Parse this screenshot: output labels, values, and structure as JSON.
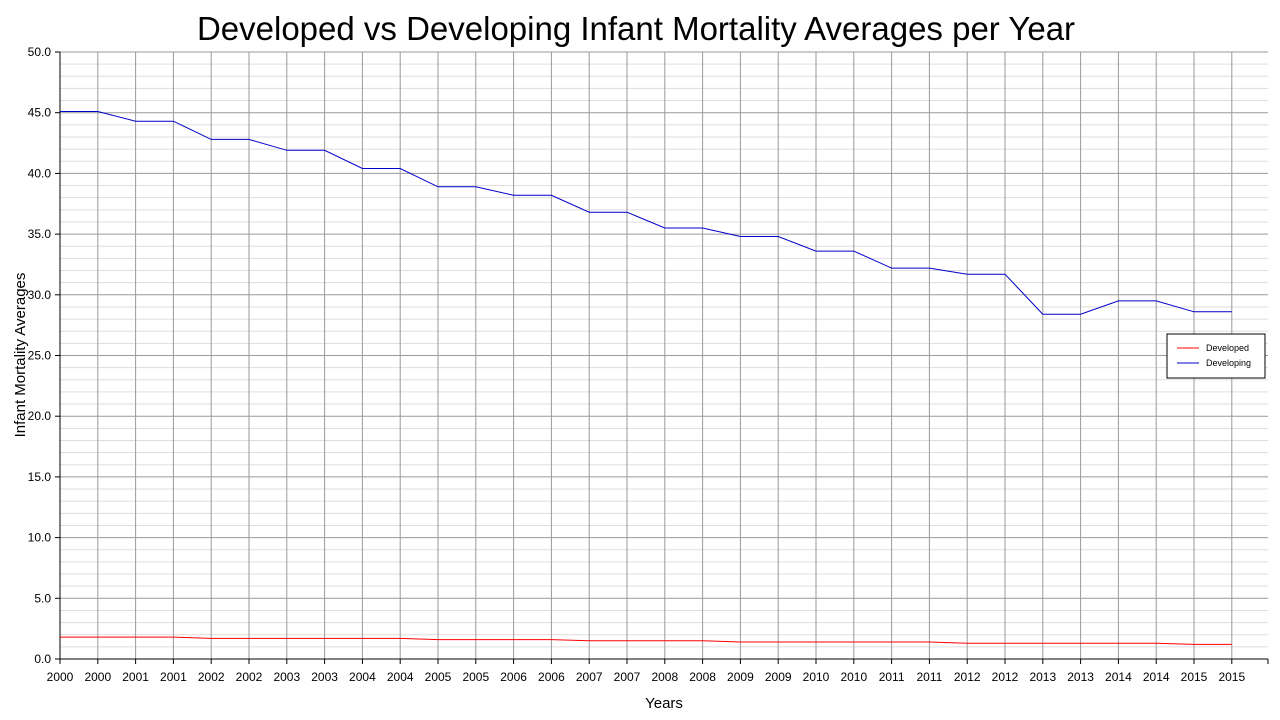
{
  "chart_data": {
    "type": "line",
    "title": "Developed vs Developing Infant Mortality Averages per Year",
    "xlabel": "Years",
    "ylabel": "Infant Mortality Averages",
    "categories": [
      "2000",
      "2000",
      "2001",
      "2001",
      "2002",
      "2002",
      "2003",
      "2003",
      "2004",
      "2004",
      "2005",
      "2005",
      "2006",
      "2006",
      "2007",
      "2007",
      "2008",
      "2008",
      "2009",
      "2009",
      "2010",
      "2010",
      "2011",
      "2011",
      "2012",
      "2012",
      "2013",
      "2013",
      "2014",
      "2014",
      "2015",
      "2015"
    ],
    "y_ticks": [
      "0.0",
      "5.0",
      "10.0",
      "15.0",
      "20.0",
      "25.0",
      "30.0",
      "35.0",
      "40.0",
      "45.0",
      "50.0"
    ],
    "ylim": [
      0,
      50
    ],
    "grid": true,
    "legend_position": "right",
    "series": [
      {
        "name": "Developed",
        "color": "#ff0000",
        "values": [
          1.8,
          1.8,
          1.8,
          1.8,
          1.7,
          1.7,
          1.7,
          1.7,
          1.7,
          1.7,
          1.6,
          1.6,
          1.6,
          1.6,
          1.5,
          1.5,
          1.5,
          1.5,
          1.4,
          1.4,
          1.4,
          1.4,
          1.4,
          1.4,
          1.3,
          1.3,
          1.3,
          1.3,
          1.3,
          1.3,
          1.2,
          1.2
        ]
      },
      {
        "name": "Developing",
        "color": "#0000cc",
        "values": [
          45.1,
          45.1,
          44.3,
          44.3,
          42.8,
          42.8,
          41.9,
          41.9,
          40.4,
          40.4,
          38.9,
          38.9,
          38.2,
          38.2,
          36.8,
          36.8,
          35.5,
          35.5,
          34.8,
          34.8,
          33.6,
          33.6,
          32.2,
          32.2,
          31.7,
          31.7,
          28.4,
          28.4,
          29.5,
          29.5,
          28.6,
          28.6
        ]
      }
    ]
  }
}
